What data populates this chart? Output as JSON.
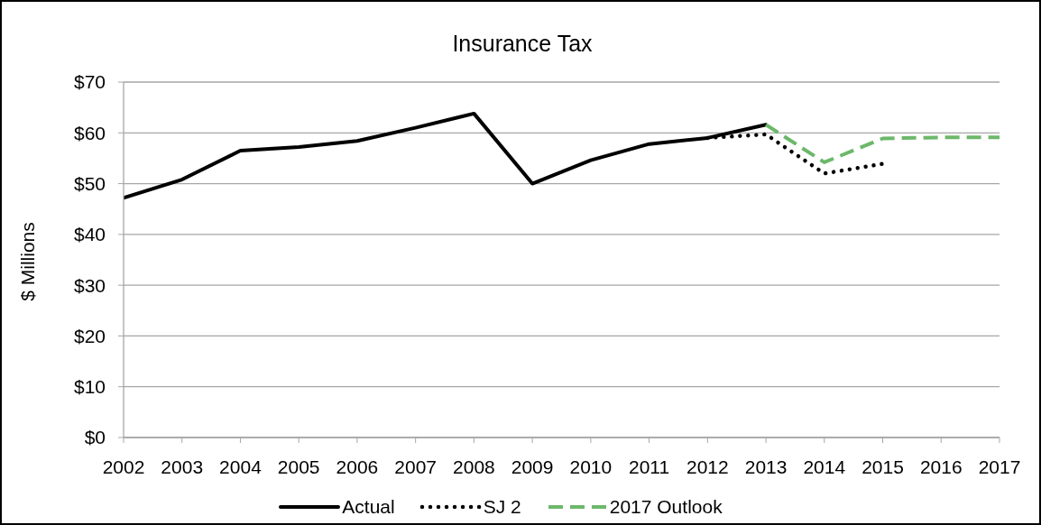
{
  "chart_data": {
    "type": "line",
    "title": "Insurance Tax",
    "ylabel": "$ Millions",
    "x": [
      2002,
      2003,
      2004,
      2005,
      2006,
      2007,
      2008,
      2009,
      2010,
      2011,
      2012,
      2013,
      2014,
      2015,
      2016,
      2017
    ],
    "series": [
      {
        "name": "Actual",
        "color": "#000000",
        "line_style": "solid",
        "values": [
          47.2,
          50.8,
          56.5,
          57.2,
          58.4,
          61.0,
          63.8,
          50.0,
          54.6,
          57.8,
          59.0,
          61.6,
          null,
          null,
          null,
          null
        ]
      },
      {
        "name": "SJ 2",
        "color": "#000000",
        "line_style": "dotted",
        "values": [
          null,
          null,
          null,
          null,
          null,
          null,
          null,
          null,
          null,
          null,
          59.0,
          59.7,
          52.0,
          53.9,
          null,
          null
        ]
      },
      {
        "name": "2017 Outlook",
        "color": "#6cb86a",
        "line_style": "dashed",
        "values": [
          null,
          null,
          null,
          null,
          null,
          null,
          null,
          null,
          null,
          null,
          null,
          61.6,
          54.2,
          58.9,
          59.1,
          59.1
        ]
      }
    ],
    "xlim": [
      2002,
      2017
    ],
    "xticks": [
      2002,
      2003,
      2004,
      2005,
      2006,
      2007,
      2008,
      2009,
      2010,
      2011,
      2012,
      2013,
      2014,
      2015,
      2016,
      2017
    ],
    "ylim": [
      0,
      70
    ],
    "yticks": [
      {
        "value": 0,
        "label": "$0"
      },
      {
        "value": 10,
        "label": "$10"
      },
      {
        "value": 20,
        "label": "$20"
      },
      {
        "value": 30,
        "label": "$30"
      },
      {
        "value": 40,
        "label": "$40"
      },
      {
        "value": 50,
        "label": "$50"
      },
      {
        "value": 60,
        "label": "$60"
      },
      {
        "value": 70,
        "label": "$70"
      }
    ],
    "grid": "y",
    "legend": "bottom",
    "marker": "none"
  }
}
